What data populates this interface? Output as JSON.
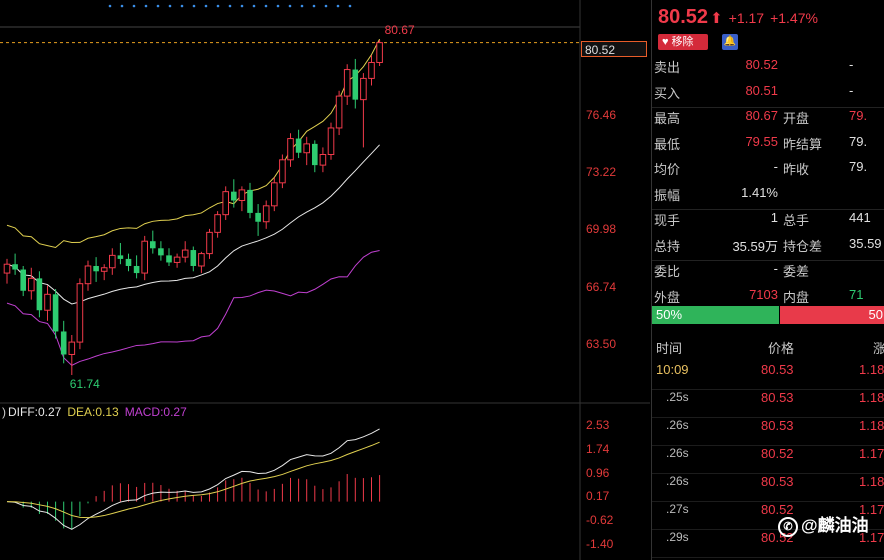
{
  "quote": {
    "last": "80.52",
    "arrow": "⬆",
    "change": "+1.17",
    "change_pct": "+1.47%",
    "remove_label": "移除"
  },
  "stats": [
    {
      "k1": "卖出",
      "v1": "80.52",
      "c1": "red",
      "k2": "",
      "v2": "-",
      "c2": "white"
    },
    {
      "k1": "买入",
      "v1": "80.51",
      "c1": "red",
      "k2": "",
      "v2": "-",
      "c2": "white"
    },
    {
      "k1": "最高",
      "v1": "80.67",
      "c1": "red",
      "k2": "开盘",
      "v2": "79.",
      "c2": "red"
    },
    {
      "k1": "最低",
      "v1": "79.55",
      "c1": "red",
      "k2": "昨结算",
      "v2": "79.",
      "c2": "white"
    },
    {
      "k1": "均价",
      "v1": "-",
      "c1": "white",
      "k2": "昨收",
      "v2": "79.",
      "c2": "white"
    },
    {
      "k1": "振幅",
      "v1": "1.41%",
      "c1": "white",
      "k2": "",
      "v2": "",
      "c2": "white"
    },
    {
      "k1": "现手",
      "v1": "1",
      "c1": "white",
      "k2": "总手",
      "v2": "441",
      "c2": "white"
    },
    {
      "k1": "总持",
      "v1": "35.59万",
      "c1": "white",
      "k2": "持仓差",
      "v2": "35.59",
      "c2": "white"
    },
    {
      "k1": "委比",
      "v1": "-",
      "c1": "white",
      "k2": "委差",
      "v2": "",
      "c2": "white"
    },
    {
      "k1": "外盘",
      "v1": "7103",
      "c1": "red",
      "k2": "内盘",
      "v2": "71",
      "c2": "green"
    }
  ],
  "ratio": {
    "buy": "50%",
    "sell": "50"
  },
  "trades_header": {
    "time": "时间",
    "price": "价格",
    "change": "涨"
  },
  "trades": [
    {
      "time": "10:09",
      "price": "80.53",
      "chg": "1.18",
      "big": true
    },
    {
      "time": ".25s",
      "price": "80.53",
      "chg": "1.18",
      "big": false
    },
    {
      "time": ".26s",
      "price": "80.53",
      "chg": "1.18",
      "big": false
    },
    {
      "time": ".26s",
      "price": "80.52",
      "chg": "1.17",
      "big": false
    },
    {
      "time": ".26s",
      "price": "80.53",
      "chg": "1.18",
      "big": false
    },
    {
      "time": ".27s",
      "price": "80.52",
      "chg": "1.17",
      "big": false
    },
    {
      "time": ".29s",
      "price": "80.52",
      "chg": "1.17",
      "big": false
    }
  ],
  "watermark": "@麟油油",
  "macd": {
    "prefix": ")",
    "diff": "DIFF:0.27",
    "dea": "DEA:0.13",
    "macd": "MACD:0.27"
  },
  "current_price_box": "80.52",
  "colors": {
    "up": "#f03a4a",
    "down": "#2ecc71",
    "ma_yellow": "#e0d050",
    "boll_mid": "#e8e8e8",
    "purple": "#c040d0"
  },
  "chart_data": {
    "type": "candlestick",
    "price_axis": [
      "76.46",
      "73.22",
      "69.98",
      "66.74",
      "63.50"
    ],
    "price_axis_values": [
      76.46,
      73.22,
      69.98,
      66.74,
      63.5
    ],
    "macd_axis": [
      "2.53",
      "1.74",
      "0.96",
      "0.17",
      "-0.62",
      "-1.40"
    ],
    "macd_axis_values": [
      2.53,
      1.74,
      0.96,
      0.17,
      -0.62,
      -1.4
    ],
    "high_label": "80.67",
    "high_value": 80.67,
    "low_label": "61.74",
    "low_value": 61.74,
    "current": 80.52,
    "candles": [
      [
        67.5,
        68.3,
        66.9,
        68.0
      ],
      [
        68.0,
        68.6,
        67.4,
        67.7
      ],
      [
        67.7,
        67.9,
        66.2,
        66.5
      ],
      [
        66.5,
        67.8,
        66.0,
        67.2
      ],
      [
        67.2,
        67.6,
        65.0,
        65.4
      ],
      [
        65.4,
        66.8,
        64.8,
        66.3
      ],
      [
        66.3,
        66.6,
        63.8,
        64.2
      ],
      [
        64.2,
        64.8,
        62.4,
        62.9
      ],
      [
        62.9,
        64.0,
        61.74,
        63.6
      ],
      [
        63.6,
        67.2,
        63.2,
        66.9
      ],
      [
        66.9,
        68.2,
        66.5,
        67.9
      ],
      [
        67.9,
        68.4,
        67.0,
        67.6
      ],
      [
        67.6,
        68.0,
        67.1,
        67.8
      ],
      [
        67.8,
        68.9,
        67.4,
        68.5
      ],
      [
        68.5,
        69.2,
        68.0,
        68.3
      ],
      [
        68.3,
        68.6,
        67.6,
        67.9
      ],
      [
        67.9,
        68.5,
        67.2,
        67.5
      ],
      [
        67.5,
        69.6,
        67.1,
        69.3
      ],
      [
        69.3,
        69.9,
        68.6,
        68.9
      ],
      [
        68.9,
        69.3,
        68.2,
        68.5
      ],
      [
        68.5,
        68.9,
        67.9,
        68.1
      ],
      [
        68.1,
        68.6,
        67.8,
        68.4
      ],
      [
        68.4,
        69.3,
        68.1,
        68.8
      ],
      [
        68.8,
        69.0,
        67.6,
        67.9
      ],
      [
        67.9,
        68.7,
        67.5,
        68.6
      ],
      [
        68.6,
        70.0,
        68.3,
        69.8
      ],
      [
        69.8,
        71.0,
        69.5,
        70.8
      ],
      [
        70.8,
        72.4,
        70.5,
        72.1
      ],
      [
        72.1,
        72.8,
        71.2,
        71.6
      ],
      [
        71.6,
        72.4,
        71.0,
        72.2
      ],
      [
        72.2,
        72.6,
        70.6,
        70.9
      ],
      [
        70.9,
        71.4,
        69.6,
        70.4
      ],
      [
        70.4,
        71.6,
        70.0,
        71.3
      ],
      [
        71.3,
        72.9,
        71.0,
        72.6
      ],
      [
        72.6,
        74.2,
        72.3,
        73.9
      ],
      [
        73.9,
        75.4,
        73.5,
        75.1
      ],
      [
        75.1,
        75.6,
        74.0,
        74.3
      ],
      [
        74.3,
        75.2,
        73.6,
        74.8
      ],
      [
        74.8,
        75.0,
        73.2,
        73.6
      ],
      [
        73.6,
        74.6,
        73.2,
        74.2
      ],
      [
        74.2,
        76.0,
        73.9,
        75.7
      ],
      [
        75.7,
        77.8,
        75.3,
        77.5
      ],
      [
        77.5,
        79.3,
        77.0,
        79.0
      ],
      [
        79.0,
        79.6,
        76.8,
        77.3
      ],
      [
        77.3,
        78.8,
        74.6,
        78.5
      ],
      [
        78.5,
        79.8,
        78.1,
        79.4
      ],
      [
        79.4,
        80.67,
        79.2,
        80.52
      ]
    ]
  }
}
